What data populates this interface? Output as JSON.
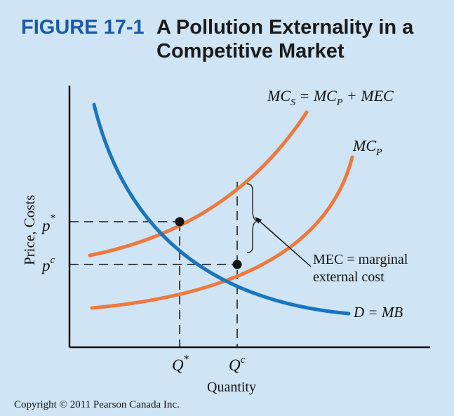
{
  "figure": {
    "number": "FIGURE 17-1",
    "title": "A Pollution Externality in a Competitive Market"
  },
  "colors": {
    "background": "#cfe4f4",
    "figure_number": "#1a5aa8",
    "demand_curve": "#1b75bc",
    "cost_curves": "#ec7a3f",
    "axes": "#111111"
  },
  "axes": {
    "x_label": "Quantity",
    "y_label": "Price, Costs"
  },
  "curves": {
    "social_cost": {
      "name": "MC",
      "sub": "S",
      "rest": " = MC",
      "rest_sub": "P",
      "tail": " + MEC"
    },
    "private_cost": {
      "name": "MC",
      "sub": "P"
    },
    "demand": {
      "label": "D = MB"
    }
  },
  "markers": {
    "p_star": {
      "base": "p",
      "sup": "*"
    },
    "p_c": {
      "base": "p",
      "sup": "c"
    },
    "q_star": {
      "base": "Q",
      "sup": "*"
    },
    "q_c": {
      "base": "Q",
      "sup": "c"
    }
  },
  "annotation": {
    "line1": "MEC = marginal",
    "line2": "external cost"
  },
  "copyright": "Copyright © 2011 Pearson Canada Inc."
}
